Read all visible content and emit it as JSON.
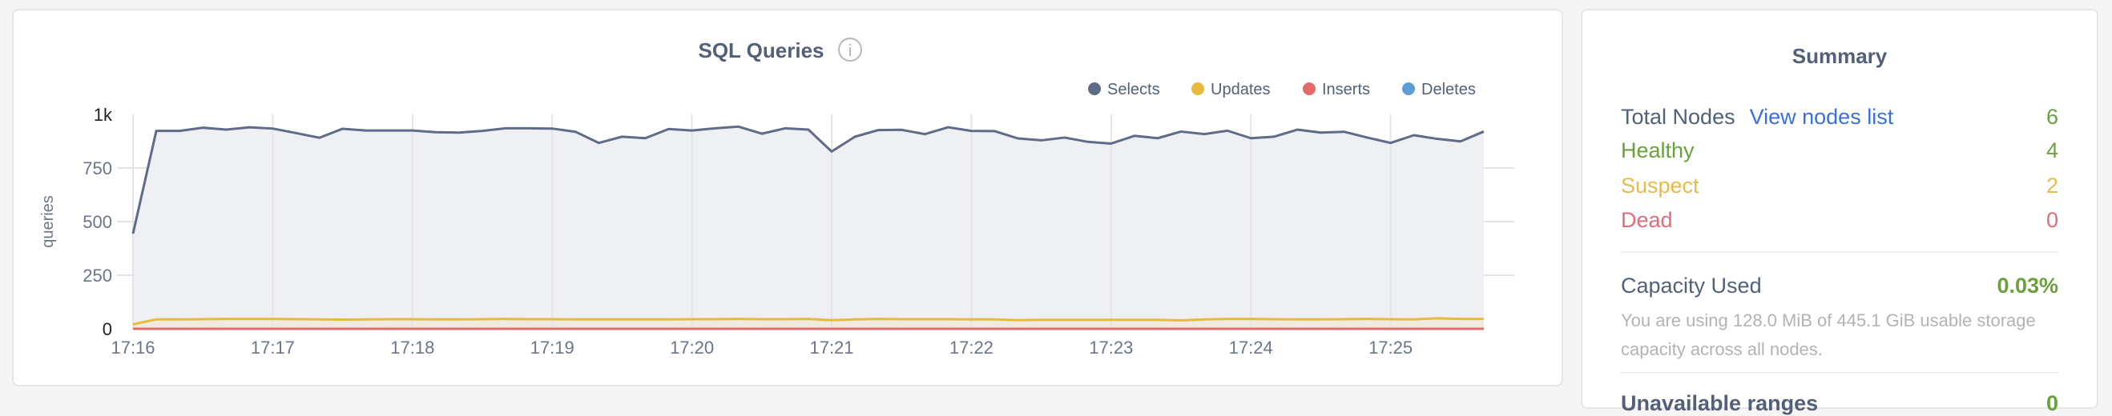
{
  "chart_data": {
    "type": "area",
    "title": "SQL Queries",
    "ylabel": "queries",
    "ylim": [
      0,
      1000
    ],
    "yticks": [
      {
        "v": 0,
        "label": "0"
      },
      {
        "v": 250,
        "label": "250"
      },
      {
        "v": 500,
        "label": "500"
      },
      {
        "v": 750,
        "label": "750"
      },
      {
        "v": 1000,
        "label": "1k"
      }
    ],
    "xticks": [
      "17:16",
      "17:17",
      "17:18",
      "17:19",
      "17:20",
      "17:21",
      "17:22",
      "17:23",
      "17:24",
      "17:25"
    ],
    "x_start": "17:16:00",
    "x_interval_seconds": 10,
    "grid": true,
    "legend_position": "top-right",
    "series": [
      {
        "name": "Selects",
        "color": "#5f6b88",
        "fill": "#eff0f4",
        "values": [
          444,
          923,
          923,
          938,
          929,
          940,
          934,
          913,
          891,
          933,
          925,
          925,
          925,
          917,
          915,
          923,
          935,
          935,
          934,
          919,
          867,
          896,
          889,
          932,
          925,
          935,
          943,
          910,
          935,
          929,
          827,
          896,
          927,
          928,
          908,
          940,
          923,
          922,
          888,
          879,
          892,
          872,
          864,
          900,
          889,
          920,
          908,
          924,
          889,
          896,
          929,
          915,
          919,
          892,
          867,
          903,
          886,
          874,
          920
        ]
      },
      {
        "name": "Updates",
        "color": "#e8b93f",
        "fill": "#f1ebdf",
        "values": [
          21,
          44,
          44,
          45,
          46,
          46,
          46,
          45,
          44,
          43,
          44,
          45,
          45,
          44,
          44,
          45,
          46,
          45,
          45,
          44,
          44,
          44,
          44,
          44,
          45,
          45,
          46,
          45,
          45,
          46,
          40,
          44,
          46,
          45,
          45,
          45,
          44,
          44,
          40,
          42,
          42,
          42,
          42,
          42,
          42,
          39,
          44,
          46,
          46,
          45,
          44,
          44,
          45,
          46,
          45,
          44,
          49,
          46,
          46
        ]
      },
      {
        "name": "Inserts",
        "color": "#e26b6b",
        "values": [
          0,
          0,
          0,
          0,
          0,
          0,
          0,
          0,
          0,
          0,
          0,
          0,
          0,
          0,
          0,
          0,
          0,
          0,
          0,
          0,
          0,
          0,
          0,
          0,
          0,
          0,
          0,
          0,
          0,
          0,
          0,
          0,
          0,
          0,
          0,
          0,
          0,
          0,
          0,
          0,
          0,
          0,
          0,
          0,
          0,
          0,
          0,
          0,
          0,
          0,
          0,
          0,
          0,
          0,
          0,
          0,
          0,
          0,
          0
        ]
      },
      {
        "name": "Deletes",
        "color": "#5c9ed3",
        "values": [
          0,
          0,
          0,
          0,
          0,
          0,
          0,
          0,
          0,
          0,
          0,
          0,
          0,
          0,
          0,
          0,
          0,
          0,
          0,
          0,
          0,
          0,
          0,
          0,
          0,
          0,
          0,
          0,
          0,
          0,
          0,
          0,
          0,
          0,
          0,
          0,
          0,
          0,
          0,
          0,
          0,
          0,
          0,
          0,
          0,
          0,
          0,
          0,
          0,
          0,
          0,
          0,
          0,
          0,
          0,
          0,
          0,
          0,
          0
        ]
      }
    ]
  },
  "chart": {
    "info_icon": "info-circle-icon"
  },
  "summary": {
    "title": "Summary",
    "total_nodes_label": "Total Nodes",
    "view_nodes_link": "View nodes list",
    "total_nodes_value": "6",
    "healthy_label": "Healthy",
    "healthy_value": "4",
    "suspect_label": "Suspect",
    "suspect_value": "2",
    "dead_label": "Dead",
    "dead_value": "0",
    "capacity_label": "Capacity Used",
    "capacity_value": "0.03%",
    "capacity_desc": "You are using 128.0 MiB of 445.1 GiB usable storage capacity across all nodes.",
    "unavailable_label": "Unavailable ranges",
    "unavailable_value": "0",
    "colors": {
      "text": "#52607a",
      "healthy": "#6aa13c",
      "suspect": "#e9b94b",
      "dead": "#e06c7a",
      "link": "#3a6fe0"
    }
  }
}
